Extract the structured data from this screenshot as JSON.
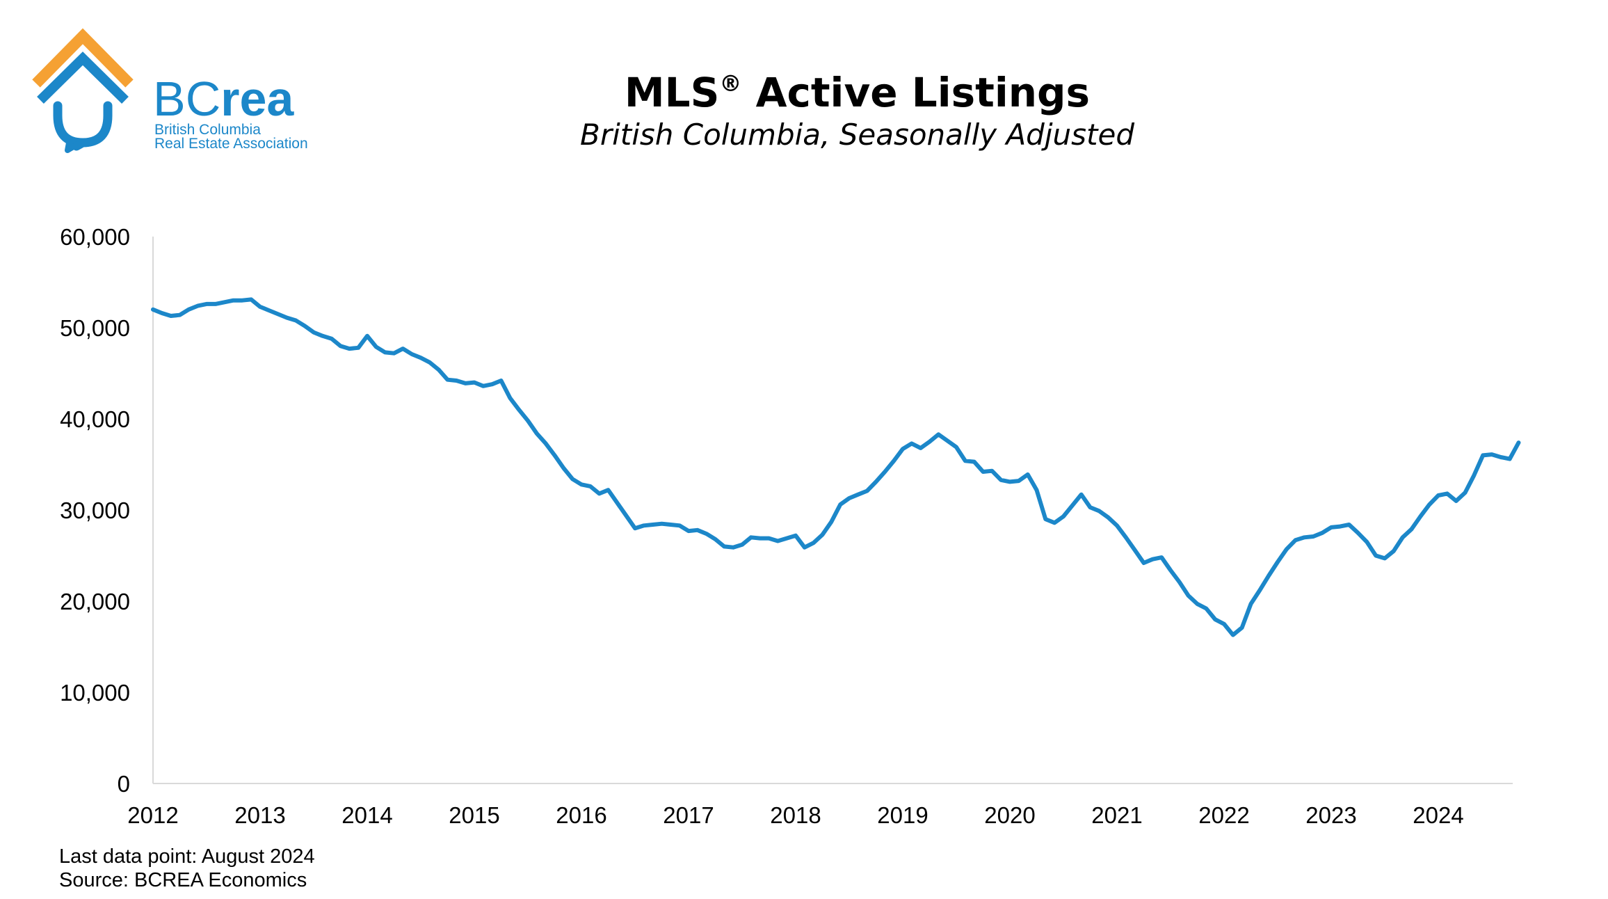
{
  "logo": {
    "wordmark": "BCrea",
    "tagline_line1": "British Columbia",
    "tagline_line2": "Real Estate Association",
    "colors": {
      "orange": "#F5A133",
      "blue": "#1C87C9"
    }
  },
  "header": {
    "title": "MLS",
    "title_mark": "®",
    "title_rest": " Active Listings",
    "subtitle": "British Columbia, Seasonally Adjusted"
  },
  "footer": {
    "last_data_point": "Last data point: August 2024",
    "source": "Source: BCREA Economics"
  },
  "chart_data": {
    "type": "line",
    "title": "MLS® Active Listings",
    "subtitle": "British Columbia, Seasonally Adjusted",
    "xlabel": "",
    "ylabel": "",
    "ylim": [
      0,
      60000
    ],
    "y_ticks": [
      0,
      10000,
      20000,
      30000,
      40000,
      50000,
      60000
    ],
    "y_tick_labels": [
      "0",
      "10,000",
      "20,000",
      "30,000",
      "40,000",
      "50,000",
      "60,000"
    ],
    "x_tick_labels": [
      "2012",
      "2013",
      "2014",
      "2015",
      "2016",
      "2017",
      "2018",
      "2019",
      "2020",
      "2021",
      "2022",
      "2023",
      "2024"
    ],
    "x_start": "2012-01",
    "grid": false,
    "legend": "none",
    "line_color": "#1C87C9",
    "series": [
      {
        "values": [
          52000,
          51600,
          51300,
          51400,
          52000,
          52400,
          52600,
          52600,
          52800,
          53000,
          53000,
          53100,
          52300,
          51900,
          51500,
          51100,
          50800,
          50200,
          49500,
          49100,
          48800,
          48000,
          47700,
          47800,
          49100,
          47900,
          47300,
          47200,
          47700,
          47100,
          46700,
          46200,
          45400,
          44300,
          44200,
          43900,
          44000,
          43600,
          43800,
          44200,
          42300,
          41000,
          39800,
          38400,
          37300,
          36000,
          34600,
          33400,
          32800,
          32600,
          31800,
          32200,
          30800,
          29400,
          28000,
          28300,
          28400,
          28500,
          28400,
          28300,
          27700,
          27800,
          27400,
          26800,
          26000,
          25900,
          26200,
          27000,
          26900,
          26900,
          26600,
          26900,
          27200,
          25900,
          26400,
          27300,
          28700,
          30600,
          31300,
          31700,
          32100,
          33100,
          34200,
          35400,
          36700,
          37300,
          36800,
          37500,
          38300,
          37600,
          36900,
          35400,
          35300,
          34200,
          34300,
          33300,
          33100,
          33200,
          33900,
          32200,
          29000,
          28600,
          29300,
          30500,
          31700,
          30300,
          29900,
          29200,
          28300,
          27000,
          25600,
          24200,
          24600,
          24800,
          23400,
          22100,
          20600,
          19700,
          19200,
          18000,
          17500,
          16300,
          17100,
          19700,
          21200,
          22800,
          24300,
          25700,
          26700,
          27000,
          27100,
          27500,
          28100,
          28200,
          28400,
          27500,
          26500,
          25000,
          24700,
          25500,
          27000,
          27900,
          29300,
          30600,
          31600,
          31800,
          31000,
          31900,
          33800,
          36000,
          36100,
          35800,
          35600,
          37400
        ]
      }
    ]
  }
}
